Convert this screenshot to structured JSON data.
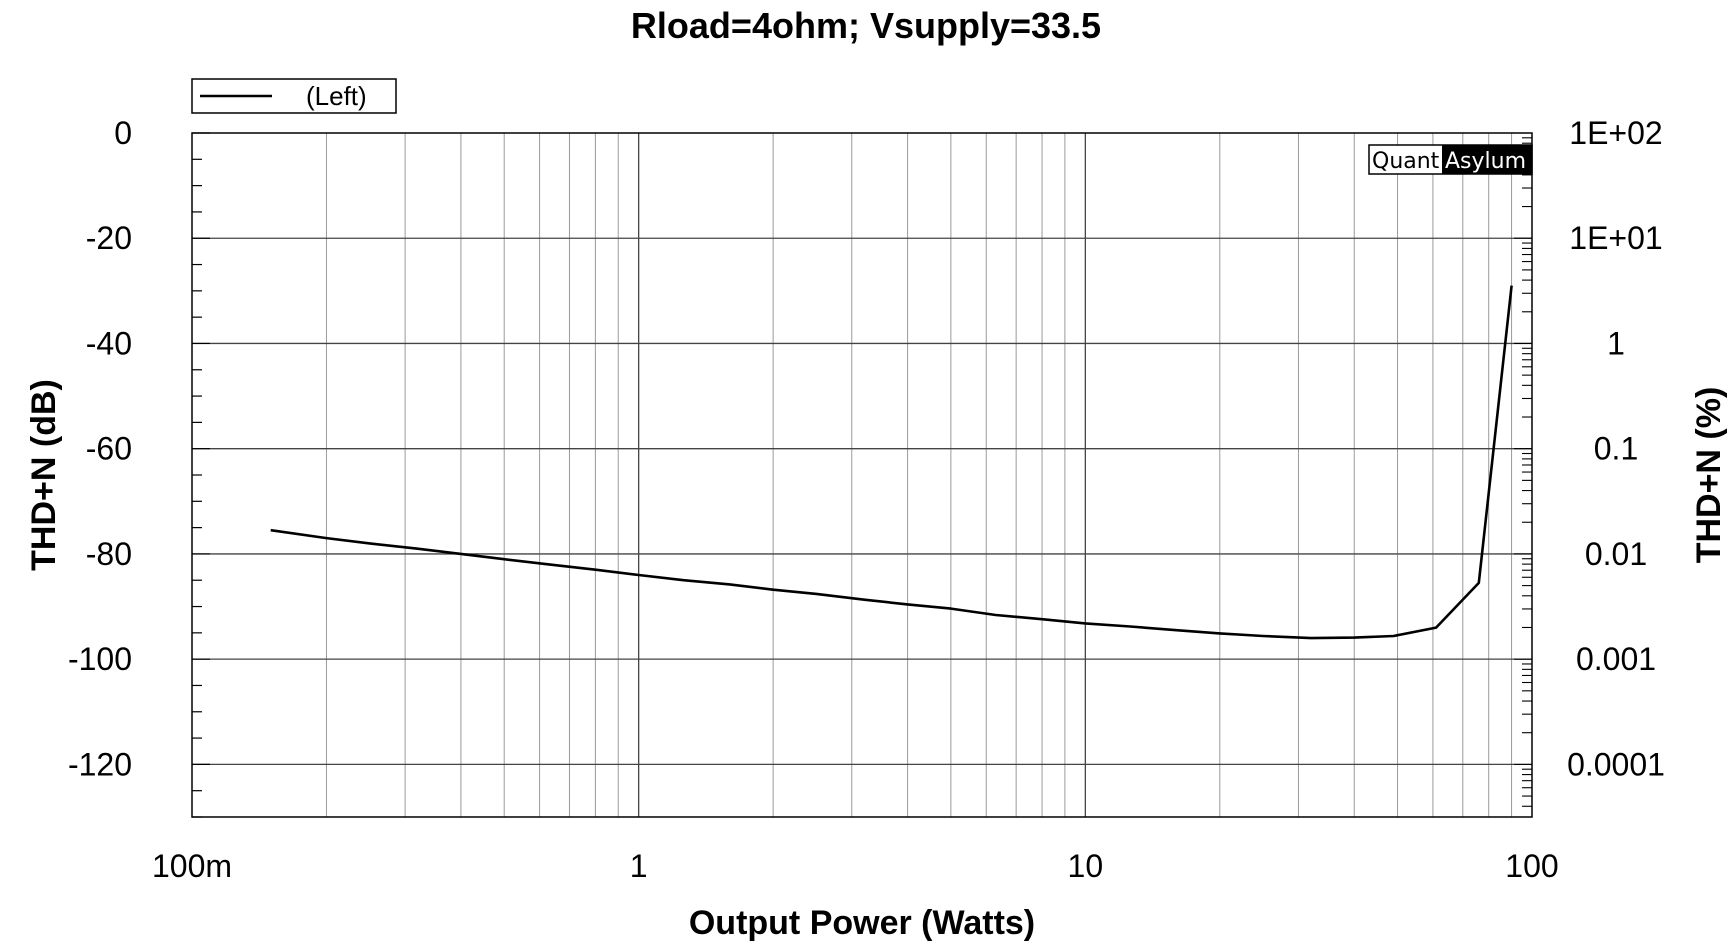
{
  "chart_data": {
    "type": "line",
    "title": "Rload=4ohm; Vsupply=33.5",
    "xlabel": "Output Power (Watts)",
    "ylabel": "THD+N (dB)",
    "ylabel_right": "THD+N (%)",
    "x_scale": "log",
    "xlim": [
      0.1,
      100
    ],
    "ylim": [
      -130,
      0
    ],
    "x_tick_labels": [
      {
        "value": 0.1,
        "label": "100m"
      },
      {
        "value": 1,
        "label": "1"
      },
      {
        "value": 10,
        "label": "10"
      },
      {
        "value": 100,
        "label": "100"
      }
    ],
    "y_tick_labels": [
      {
        "value": 0,
        "label": "0"
      },
      {
        "value": -20,
        "label": "-20"
      },
      {
        "value": -40,
        "label": "-40"
      },
      {
        "value": -60,
        "label": "-60"
      },
      {
        "value": -80,
        "label": "-80"
      },
      {
        "value": -100,
        "label": "-100"
      },
      {
        "value": -120,
        "label": "-120"
      }
    ],
    "y_right_scale": "log",
    "y_right_tick_labels": [
      {
        "value": 100,
        "label": "1E+02"
      },
      {
        "value": 10,
        "label": "1E+01"
      },
      {
        "value": 1,
        "label": "1"
      },
      {
        "value": 0.1,
        "label": "0.1"
      },
      {
        "value": 0.01,
        "label": "0.01"
      },
      {
        "value": 0.001,
        "label": "0.001"
      },
      {
        "value": 0.0001,
        "label": "0.0001"
      }
    ],
    "grid": true,
    "legend_position": "top-left",
    "series": [
      {
        "name": "(Left)",
        "color": "#000000",
        "x": [
          0.15,
          0.2,
          0.25,
          0.32,
          0.4,
          0.5,
          0.63,
          0.8,
          1.0,
          1.26,
          1.6,
          2.0,
          2.5,
          3.2,
          4.0,
          5.0,
          6.3,
          8.0,
          10.0,
          12.6,
          16.0,
          20.0,
          25.0,
          32.0,
          40.0,
          49.0,
          61.0,
          76.0,
          90.0
        ],
        "y": [
          -75.5,
          -77.0,
          -78.0,
          -79.0,
          -80.0,
          -81.0,
          -82.0,
          -83.0,
          -84.0,
          -85.0,
          -85.8,
          -86.8,
          -87.6,
          -88.7,
          -89.6,
          -90.4,
          -91.6,
          -92.4,
          -93.2,
          -93.8,
          -94.5,
          -95.1,
          -95.6,
          -96.0,
          -95.9,
          -95.6,
          -94.0,
          -85.5,
          -29.0
        ]
      }
    ]
  },
  "brand": {
    "part1": "Quant",
    "part2": "Asylum"
  }
}
